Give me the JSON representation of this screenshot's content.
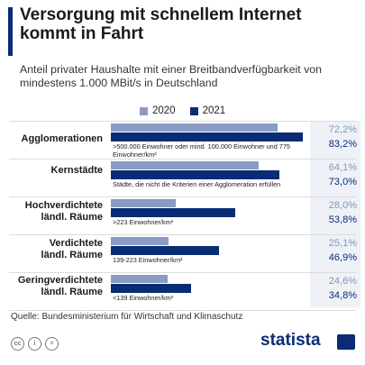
{
  "title": "Versorgung mit schnellem Internet kommt in Fahrt",
  "subtitle": "Anteil privater Haushalte mit einer Breitbandverfügbarkeit von mindestens 1.000 MBit/s in Deutschland",
  "source": "Quelle: Bundesministerium für Wirtschaft und Klimaschutz",
  "brand": "statista",
  "icons": [
    "cc-icon",
    "by-icon",
    "nd-icon"
  ],
  "colors": {
    "series_2020": "#8a9cc4",
    "series_2021": "#0a2c75",
    "accent": "#0a2c75"
  },
  "chart_data": {
    "type": "bar",
    "orientation": "horizontal",
    "categories": [
      "Agglomerationen",
      "Kernstädte",
      "Hochverdichtete ländl. Räume",
      "Verdichtete ländl. Räume",
      "Geringverdichtete ländl. Räume"
    ],
    "category_notes": [
      ">500.000 Einwohner oder mind. 100.000 Einwohner und 775 Einwohner/km²",
      "Städte, die nicht die Kriterien einer Agglomeration erfüllen",
      ">223 Einwohner/km²",
      "139-223 Einwohner/km²",
      "<139 Einwohner/km²"
    ],
    "series": [
      {
        "name": "2020",
        "values": [
          72.2,
          64.1,
          28.0,
          25.1,
          24.6
        ],
        "labels": [
          "72,2%",
          "64,1%",
          "28,0%",
          "25,1%",
          "24,6%"
        ]
      },
      {
        "name": "2021",
        "values": [
          83.2,
          73.0,
          53.8,
          46.9,
          34.8
        ],
        "labels": [
          "83,2%",
          "73,0%",
          "53,8%",
          "46,9%",
          "34,8%"
        ]
      }
    ],
    "xlim": [
      0,
      85
    ],
    "legend_position": "top"
  }
}
